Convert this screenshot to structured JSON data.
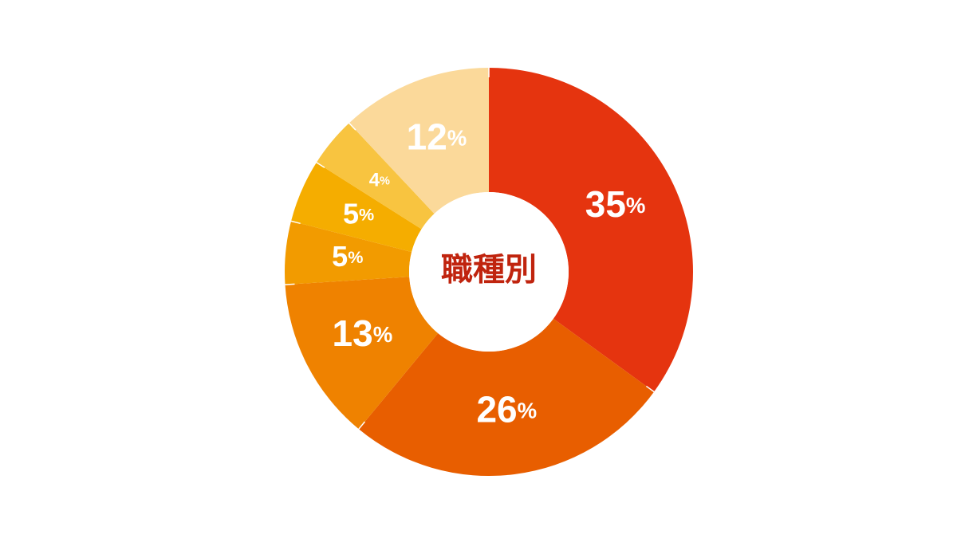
{
  "chart_data": {
    "type": "donut",
    "center_label": "職種別",
    "values": [
      35,
      26,
      13,
      5,
      5,
      4,
      12
    ],
    "value_labels": [
      "35%",
      "26%",
      "13%",
      "5%",
      "5%",
      "4%",
      "12%"
    ],
    "colors": [
      "#e5340f",
      "#e85e00",
      "#ef8200",
      "#f29b00",
      "#f5ad00",
      "#f8c440",
      "#fbd99a"
    ]
  }
}
